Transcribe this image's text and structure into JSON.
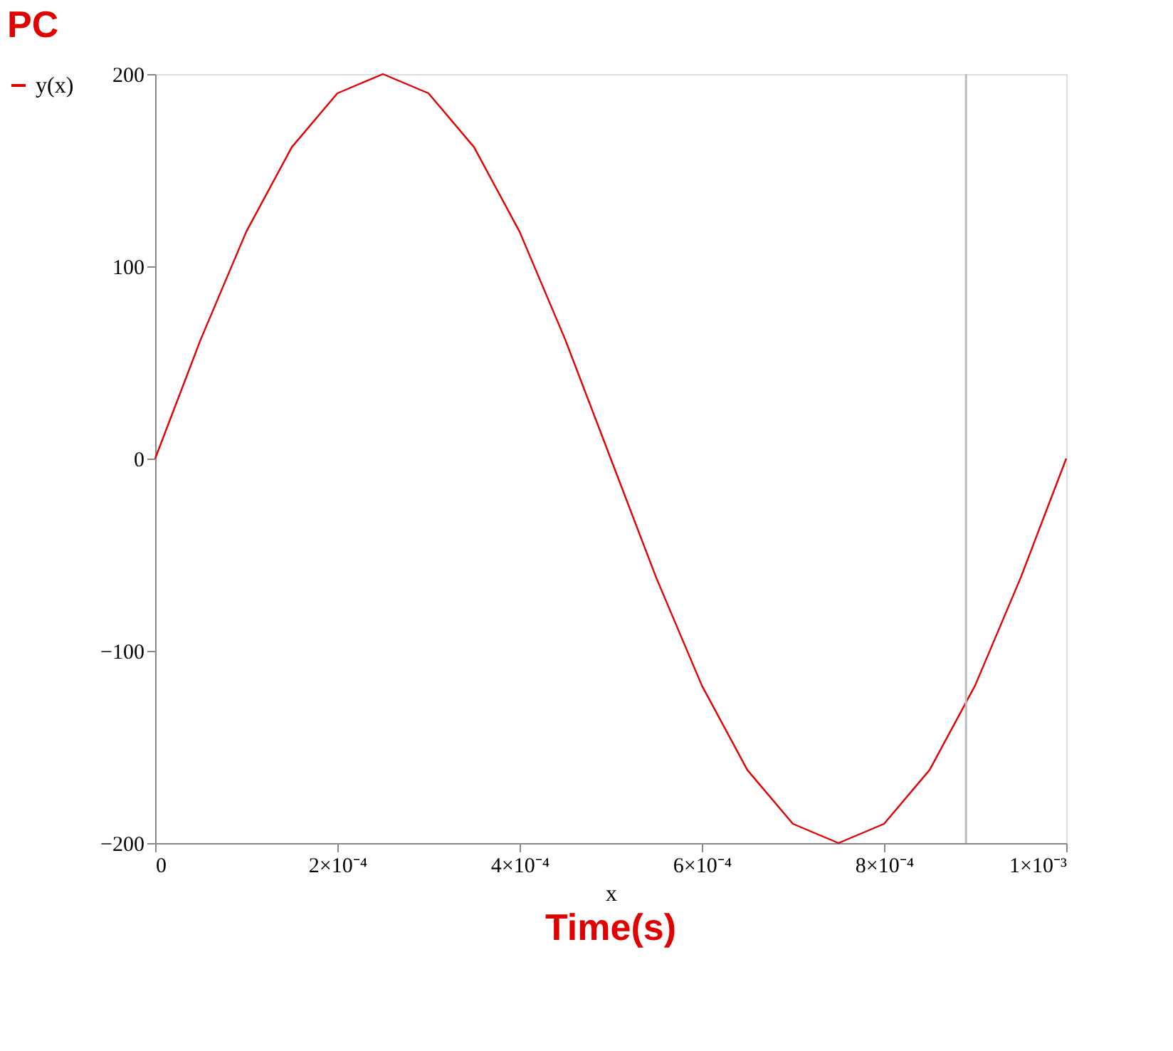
{
  "chart_data": {
    "type": "line",
    "title": "PC",
    "xlabel": "x",
    "annotations": [
      "Time(s)"
    ],
    "x": [
      0,
      5e-05,
      0.0001,
      0.00015,
      0.0002,
      0.00025,
      0.0003,
      0.00035,
      0.0004,
      0.00045,
      0.0005,
      0.00055,
      0.0006,
      0.00065,
      0.0007,
      0.00075,
      0.0008,
      0.00085,
      0.0009,
      0.00095,
      0.001
    ],
    "series": [
      {
        "name": "y(x)",
        "color": "#e00000",
        "values": [
          0,
          62,
          118,
          162,
          190,
          200,
          190,
          162,
          118,
          62,
          0,
          -62,
          -118,
          -162,
          -190,
          -200,
          -190,
          -162,
          -118,
          -62,
          0
        ]
      }
    ],
    "xlim": [
      0,
      0.001
    ],
    "ylim": [
      -200,
      200
    ],
    "xticks": [
      {
        "value": 0,
        "label": "0"
      },
      {
        "value": 0.0002,
        "label": "2×10⁻⁴"
      },
      {
        "value": 0.0004,
        "label": "4×10⁻⁴"
      },
      {
        "value": 0.0006,
        "label": "6×10⁻⁴"
      },
      {
        "value": 0.0008,
        "label": "8×10⁻⁴"
      },
      {
        "value": 0.001,
        "label": "1×10⁻³"
      }
    ],
    "yticks": [
      {
        "value": -200,
        "label": "−200"
      },
      {
        "value": -100,
        "label": "−100"
      },
      0,
      100,
      200
    ],
    "ref_lines": [
      {
        "axis": "x",
        "value": 0.00089,
        "color": "#bbbbbb"
      }
    ],
    "legend": "left",
    "grid": false
  }
}
